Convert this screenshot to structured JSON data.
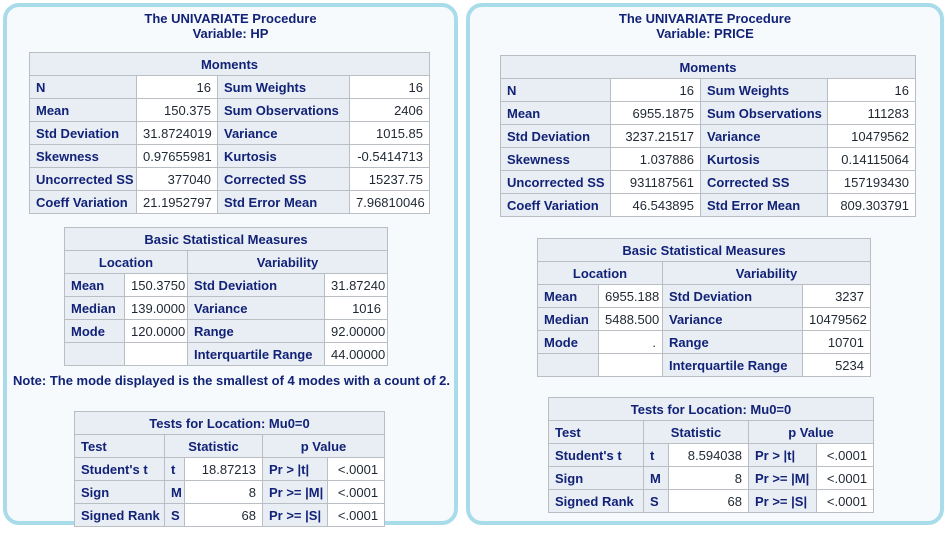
{
  "colors": {
    "panel_border": "#a9dcea",
    "panel_background": "#f7fafd",
    "header_text": "#112277",
    "table_header_background": "#e9eef5",
    "table_border": "#b9bec4",
    "data_text": "#1f2733"
  },
  "panels": [
    {
      "title": "The UNIVARIATE Procedure",
      "subtitle": "Variable: HP",
      "moments": {
        "title": "Moments",
        "rows": [
          [
            "N",
            "16",
            "Sum Weights",
            "16"
          ],
          [
            "Mean",
            "150.375",
            "Sum Observations",
            "2406"
          ],
          [
            "Std Deviation",
            "31.8724019",
            "Variance",
            "1015.85"
          ],
          [
            "Skewness",
            "0.97655981",
            "Kurtosis",
            "-0.5414713"
          ],
          [
            "Uncorrected SS",
            "377040",
            "Corrected SS",
            "15237.75"
          ],
          [
            "Coeff Variation",
            "21.1952797",
            "Std Error Mean",
            "7.96810046"
          ]
        ]
      },
      "basic_measures": {
        "title": "Basic Statistical Measures",
        "location_header": "Location",
        "variability_header": "Variability",
        "rows": [
          [
            "Mean",
            "150.3750",
            "Std Deviation",
            "31.87240"
          ],
          [
            "Median",
            "139.0000",
            "Variance",
            "1016"
          ],
          [
            "Mode",
            "120.0000",
            "Range",
            "92.00000"
          ],
          [
            "",
            "",
            "Interquartile Range",
            "44.00000"
          ]
        ]
      },
      "note": "Note: The mode displayed is the smallest of 4 modes with a count of 2.",
      "tests": {
        "title": "Tests for Location: Mu0=0",
        "headers": [
          "Test",
          "Statistic",
          "p Value"
        ],
        "rows": [
          [
            "Student's t",
            "t",
            "18.87213",
            "Pr > |t|",
            "<.0001"
          ],
          [
            "Sign",
            "M",
            "8",
            "Pr >= |M|",
            "<.0001"
          ],
          [
            "Signed Rank",
            "S",
            "68",
            "Pr >= |S|",
            "<.0001"
          ]
        ]
      }
    },
    {
      "title": "The UNIVARIATE Procedure",
      "subtitle": "Variable: PRICE",
      "moments": {
        "title": "Moments",
        "rows": [
          [
            "N",
            "16",
            "Sum Weights",
            "16"
          ],
          [
            "Mean",
            "6955.1875",
            "Sum Observations",
            "111283"
          ],
          [
            "Std Deviation",
            "3237.21517",
            "Variance",
            "10479562"
          ],
          [
            "Skewness",
            "1.037886",
            "Kurtosis",
            "0.14115064"
          ],
          [
            "Uncorrected SS",
            "931187561",
            "Corrected SS",
            "157193430"
          ],
          [
            "Coeff Variation",
            "46.543895",
            "Std Error Mean",
            "809.303791"
          ]
        ]
      },
      "basic_measures": {
        "title": "Basic Statistical Measures",
        "location_header": "Location",
        "variability_header": "Variability",
        "rows": [
          [
            "Mean",
            "6955.188",
            "Std Deviation",
            "3237"
          ],
          [
            "Median",
            "5488.500",
            "Variance",
            "10479562"
          ],
          [
            "Mode",
            ".",
            "Range",
            "10701"
          ],
          [
            "",
            "",
            "Interquartile Range",
            "5234"
          ]
        ]
      },
      "tests": {
        "title": "Tests for Location: Mu0=0",
        "headers": [
          "Test",
          "Statistic",
          "p Value"
        ],
        "rows": [
          [
            "Student's t",
            "t",
            "8.594038",
            "Pr > |t|",
            "<.0001"
          ],
          [
            "Sign",
            "M",
            "8",
            "Pr >= |M|",
            "<.0001"
          ],
          [
            "Signed Rank",
            "S",
            "68",
            "Pr >= |S|",
            "<.0001"
          ]
        ]
      }
    }
  ]
}
